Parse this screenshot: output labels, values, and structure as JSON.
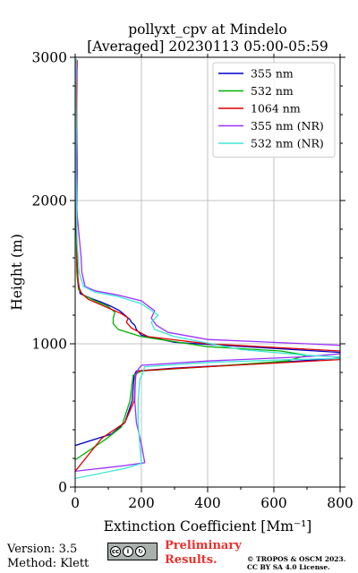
{
  "chart_data": {
    "type": "line",
    "orientation": "x-value-y-height",
    "title": "pollyxt_cpv at Mindelo",
    "subtitle": "[Averaged] 20230113 05:00-05:59",
    "xlabel": "Extinction Coefficient [Mm⁻¹]",
    "ylabel": "Height (m)",
    "xlim": [
      0,
      800
    ],
    "ylim": [
      0,
      3000
    ],
    "xticks": [
      "0",
      "200",
      "400",
      "600",
      "800"
    ],
    "yticks": [
      "0",
      "1000",
      "2000",
      "3000"
    ],
    "grid": true,
    "legend_position": "top-right",
    "series": [
      {
        "name": "355 nm",
        "color": "#0000cc",
        "x": [
          0,
          110,
          150,
          172,
          178,
          185,
          300,
          550,
          800,
          950,
          800,
          300,
          200,
          185,
          180,
          170,
          165,
          160,
          150,
          135,
          110,
          80,
          45,
          15,
          8,
          5,
          4,
          5,
          6,
          5,
          4,
          5
        ],
        "y": [
          290,
          370,
          450,
          600,
          780,
          810,
          830,
          860,
          900,
          920,
          940,
          1010,
          1060,
          1100,
          1130,
          1150,
          1170,
          1180,
          1200,
          1230,
          1260,
          1290,
          1320,
          1350,
          1450,
          1600,
          1800,
          2000,
          2200,
          2400,
          2700,
          2980
        ]
      },
      {
        "name": "532 nm",
        "color": "#00b300",
        "x": [
          0,
          90,
          140,
          165,
          175,
          200,
          400,
          640,
          700,
          620,
          400,
          200,
          130,
          115,
          115,
          120,
          100,
          60,
          25,
          10,
          5,
          3,
          4,
          3,
          4
        ],
        "y": [
          190,
          330,
          420,
          600,
          780,
          810,
          840,
          880,
          920,
          950,
          980,
          1050,
          1100,
          1140,
          1180,
          1220,
          1260,
          1300,
          1340,
          1380,
          1500,
          1800,
          2100,
          2500,
          2980
        ]
      },
      {
        "name": "1064 nm",
        "color": "#dd0000",
        "x": [
          0,
          80,
          150,
          178,
          183,
          190,
          320,
          560,
          800,
          900,
          800,
          400,
          220,
          170,
          155,
          160,
          140,
          110,
          80,
          40,
          20,
          10,
          6,
          4,
          3,
          4,
          6
        ],
        "y": [
          110,
          340,
          450,
          600,
          780,
          810,
          830,
          860,
          890,
          920,
          950,
          1000,
          1050,
          1110,
          1150,
          1180,
          1210,
          1240,
          1270,
          1310,
          1350,
          1400,
          1550,
          1800,
          2200,
          2600,
          2980
        ]
      },
      {
        "name": "355 nm (NR)",
        "color": "#9b30ff",
        "x": [
          0,
          150,
          210,
          200,
          185,
          180,
          182,
          190,
          200,
          400,
          700,
          900,
          800,
          600,
          400,
          280,
          245,
          230,
          240,
          200,
          130,
          60,
          30,
          20,
          18,
          14,
          10,
          6,
          4,
          5,
          3,
          2,
          3,
          5,
          3
        ],
        "y": [
          110,
          150,
          170,
          300,
          450,
          600,
          780,
          820,
          850,
          880,
          910,
          950,
          990,
          1010,
          1030,
          1080,
          1130,
          1180,
          1230,
          1300,
          1340,
          1370,
          1400,
          1500,
          1600,
          1700,
          1800,
          1900,
          2000,
          2200,
          2400,
          2600,
          2800,
          2900,
          2990
        ]
      },
      {
        "name": "532 nm (NR)",
        "color": "#3ee6d6",
        "x": [
          0,
          150,
          200,
          195,
          190,
          190,
          195,
          205,
          210,
          400,
          650,
          850,
          700,
          500,
          300,
          240,
          230,
          250,
          200,
          130,
          60,
          25,
          12,
          6,
          4,
          3,
          2,
          3,
          2,
          3
        ],
        "y": [
          60,
          130,
          165,
          300,
          450,
          600,
          750,
          800,
          840,
          870,
          890,
          900,
          920,
          960,
          1050,
          1100,
          1150,
          1200,
          1280,
          1330,
          1360,
          1400,
          1500,
          1700,
          1900,
          2100,
          2300,
          2500,
          2800,
          2990
        ]
      }
    ]
  },
  "footer": {
    "version": "Version: 3.5",
    "method": "Method: Klett",
    "preliminary_line1": "Preliminary",
    "preliminary_line2": "Results.",
    "copyright_line1": "© TROPOS & OSCM 2023.",
    "copyright_line2": "CC BY SA 4.0 License.",
    "license_badge": "cc by sa"
  }
}
